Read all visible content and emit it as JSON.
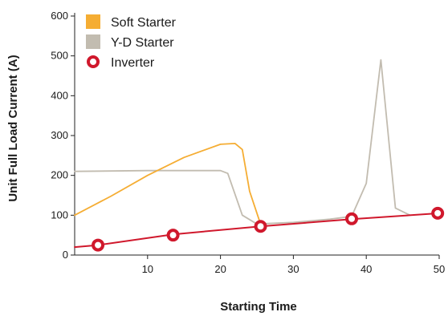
{
  "chart_data": {
    "type": "line",
    "title": "",
    "xlabel": "Starting Time",
    "ylabel": "Unit  Full Load Current (A)",
    "xlim": [
      0,
      50
    ],
    "ylim": [
      0,
      600
    ],
    "x_ticks": [
      10,
      20,
      30,
      40,
      50
    ],
    "y_ticks": [
      0,
      100,
      200,
      300,
      400,
      500,
      600
    ],
    "grid": false,
    "legend_position": "top-left",
    "series": [
      {
        "name": "Soft Starter",
        "color": "#f5ad33",
        "marker": "square",
        "x": [
          0,
          5,
          10,
          15,
          20,
          22,
          23,
          24,
          25.5
        ],
        "y": [
          100,
          148,
          200,
          245,
          278,
          280,
          265,
          160,
          78
        ]
      },
      {
        "name": "Y-D Starter",
        "color": "#c2bcb0",
        "marker": "square",
        "x": [
          0,
          10,
          20,
          21,
          23,
          25,
          30,
          35,
          38,
          40,
          42,
          44,
          46
        ],
        "y": [
          210,
          212,
          212,
          205,
          100,
          78,
          82,
          90,
          97,
          180,
          490,
          118,
          100
        ]
      },
      {
        "name": "Inverter",
        "color": "#d0182c",
        "marker": "circle",
        "x": [
          0,
          3.2,
          13.5,
          25.5,
          38,
          50
        ],
        "y": [
          20,
          25,
          52,
          72,
          90,
          105
        ],
        "marker_x": [
          3.2,
          13.5,
          25.5,
          38,
          49.8
        ],
        "marker_y": [
          25,
          50,
          72,
          91,
          105
        ]
      }
    ]
  }
}
